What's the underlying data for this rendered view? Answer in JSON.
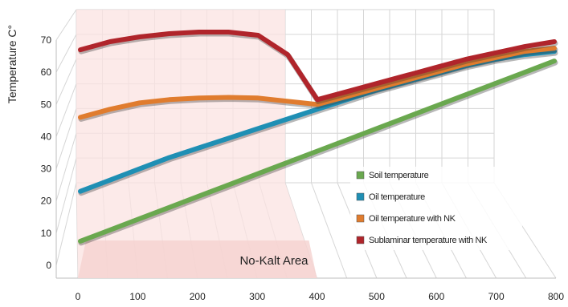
{
  "chart_data": {
    "type": "line",
    "title": "",
    "xlabel": "",
    "ylabel": "Temperature C°",
    "x": [
      0,
      50,
      100,
      150,
      200,
      250,
      300,
      350,
      400,
      450,
      500,
      550,
      600,
      650,
      700,
      750,
      800
    ],
    "x_ticks": [
      "0",
      "100",
      "200",
      "300",
      "400",
      "500",
      "600",
      "700",
      "800"
    ],
    "y_ticks": [
      "0",
      "10",
      "20",
      "30",
      "40",
      "50",
      "60",
      "70"
    ],
    "xlim": [
      0,
      800
    ],
    "ylim": [
      0,
      70
    ],
    "grid": true,
    "legend_position": "bottom-right",
    "series": [
      {
        "name": "Soil temperature",
        "color": "#6aa84f",
        "values": [
          5.5,
          9,
          12.5,
          16,
          19.5,
          23,
          26.5,
          30,
          33.5,
          37,
          40.5,
          44,
          47.5,
          51,
          54.5,
          58,
          61.5
        ]
      },
      {
        "name": "Oil temperature",
        "color": "#1f8fb4",
        "values": [
          21,
          24.5,
          28,
          31.5,
          34.5,
          37.5,
          40.5,
          43.5,
          46.5,
          49.5,
          52.5,
          55,
          57.5,
          60,
          62,
          63.5,
          64.5
        ]
      },
      {
        "name": "Oil temperature with NK",
        "color": "#e07c2e",
        "values": [
          44,
          46.5,
          48.5,
          49.5,
          50,
          50.2,
          50,
          49,
          48,
          50.5,
          53,
          55.5,
          58,
          60.5,
          62.5,
          64.5,
          65.5
        ]
      },
      {
        "name": "Sublaminar temperature with NK",
        "color": "#b0252b",
        "values": [
          65,
          67.5,
          69,
          70,
          70.5,
          70.5,
          69.5,
          63.5,
          49.5,
          52,
          54.5,
          57,
          59.5,
          62,
          64,
          66,
          67.5
        ]
      }
    ],
    "annotations": [
      {
        "text": "No-Kalt Area",
        "x_range": [
          0,
          400
        ]
      }
    ]
  }
}
